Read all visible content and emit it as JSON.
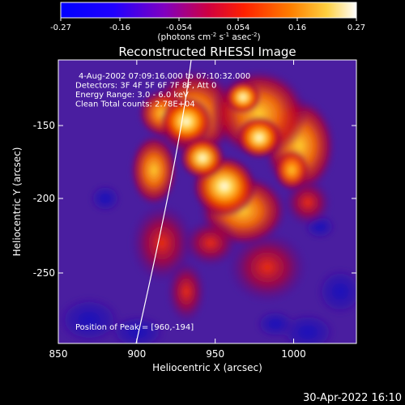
{
  "colorbar": {
    "ticks": [
      "-0.27",
      "-0.16",
      "-0.054",
      "0.054",
      "0.16",
      "0.27"
    ],
    "units_prefix": "(photons cm",
    "units_sup1": "-2",
    "units_mid": " s",
    "units_sup2": "-1",
    "units_mid2": " asec",
    "units_sup3": "-2",
    "units_suffix": ")"
  },
  "chart_data": {
    "type": "heatmap",
    "title": "Reconstructed RHESSI Image",
    "xlabel": "Heliocentric X (arcsec)",
    "ylabel": "Heliocentric Y (arcsec)",
    "xlim": [
      850,
      1040
    ],
    "ylim": [
      -298,
      -185
    ],
    "x_ticks": [
      "850",
      "900",
      "950",
      "1000"
    ],
    "y_ticks": [
      "-150",
      "-200",
      "-250"
    ],
    "colorbar_range": [
      -0.27,
      0.27
    ],
    "annotations": [
      "4-Aug-2002 07:09:16.000 to 07:10:32.000",
      "Detectors: 3F 4F 5F 6F 7F 8F, Att 0",
      "Energy Range: 3.0 - 6.0 keV",
      "Clean     Total counts: 2.78E+04"
    ],
    "peak_label": "Position of Peak = [960,-194]",
    "peak": [
      960,
      -194
    ],
    "limb_curve": true
  },
  "footer": {
    "date": "30-Apr-2022 16:10"
  }
}
